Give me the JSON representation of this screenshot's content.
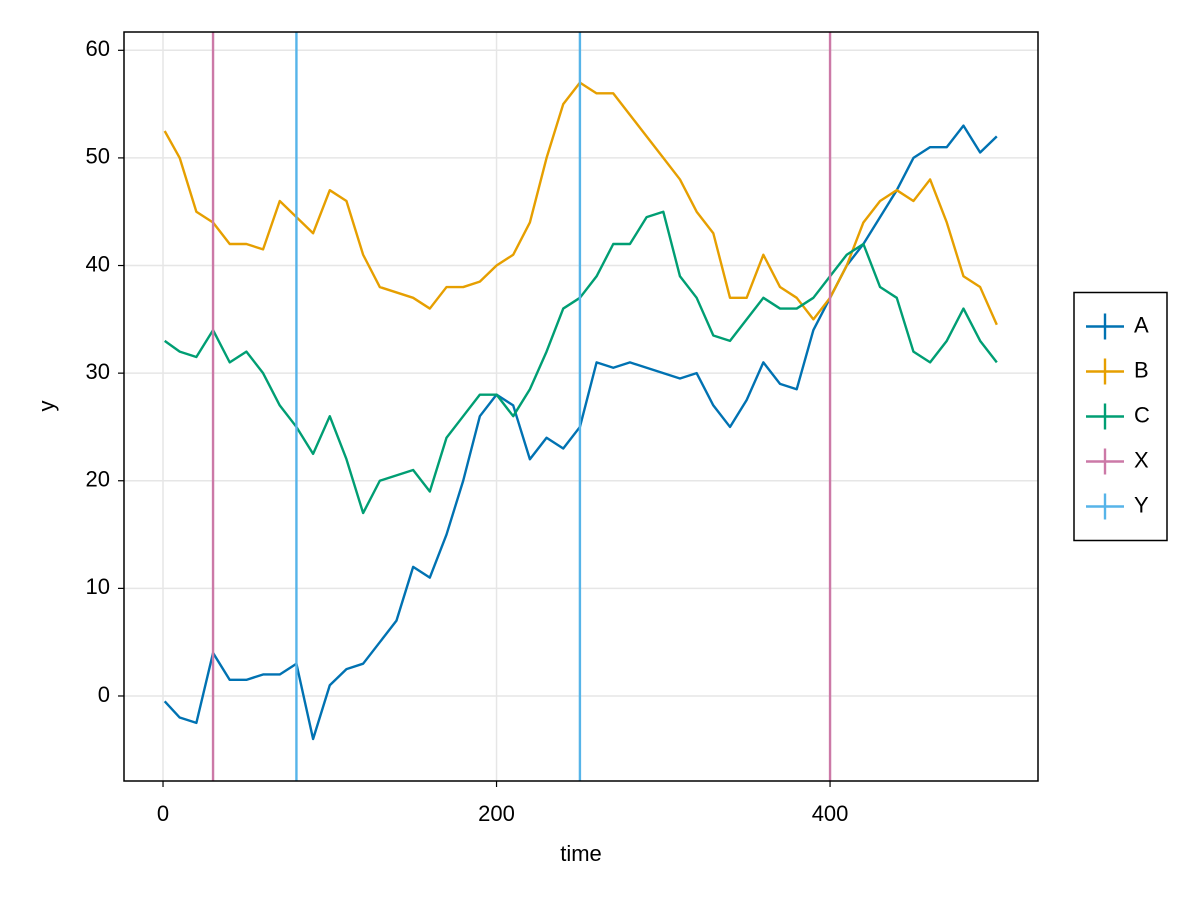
{
  "chart_data": {
    "type": "line",
    "xlabel": "time",
    "ylabel": "y",
    "x": [
      1,
      10,
      20,
      30,
      40,
      50,
      60,
      70,
      80,
      90,
      100,
      110,
      120,
      130,
      140,
      150,
      160,
      170,
      180,
      190,
      200,
      210,
      220,
      230,
      240,
      250,
      260,
      270,
      280,
      290,
      300,
      310,
      320,
      330,
      340,
      350,
      360,
      370,
      380,
      390,
      400,
      410,
      420,
      430,
      440,
      450,
      460,
      470,
      480,
      490,
      500
    ],
    "series": [
      {
        "name": "A",
        "color": "#0072b2",
        "values": [
          -0.5,
          -2,
          -2.5,
          4,
          1.5,
          1.5,
          2,
          2,
          3,
          -4,
          1,
          2.5,
          3,
          5,
          7,
          12,
          11,
          15,
          20,
          26,
          28,
          27,
          22,
          24,
          23,
          25,
          31,
          30.5,
          31,
          30.5,
          30,
          29.5,
          30,
          27,
          25,
          27.5,
          31,
          29,
          28.5,
          34,
          37,
          40,
          42,
          44.5,
          47,
          50,
          51,
          51,
          53,
          50.5,
          52
        ]
      },
      {
        "name": "B",
        "color": "#e69f00",
        "values": [
          52.5,
          50,
          45,
          44,
          42,
          42,
          41.5,
          46,
          44.5,
          43,
          47,
          46,
          41,
          38,
          37.5,
          37,
          36,
          38,
          38,
          38.5,
          40,
          41,
          44,
          50,
          55,
          57,
          56,
          56,
          54,
          52,
          50,
          48,
          45,
          43,
          37,
          37,
          41,
          38,
          37,
          35,
          37,
          40,
          44,
          46,
          47,
          46,
          48,
          44,
          39,
          38,
          34.5
        ]
      },
      {
        "name": "C",
        "color": "#009e73",
        "values": [
          33,
          32,
          31.5,
          34,
          31,
          32,
          30,
          27,
          25,
          22.5,
          26,
          22,
          17,
          20,
          20.5,
          21,
          19,
          24,
          26,
          28,
          28,
          26,
          28.5,
          32,
          36,
          37,
          39,
          42,
          42,
          44.5,
          45,
          39,
          37,
          33.5,
          33,
          35,
          37,
          36,
          36,
          37,
          39,
          41,
          42,
          38,
          37,
          32,
          31,
          33,
          36,
          33,
          31
        ]
      }
    ],
    "vlines": [
      {
        "name": "X",
        "color": "#cc79a7",
        "values": [
          30,
          400
        ]
      },
      {
        "name": "Y",
        "color": "#56b4e9",
        "values": [
          80,
          250
        ]
      }
    ],
    "xlim": [
      -23.4,
      524.7
    ],
    "ylim": [
      -7.9,
      61.7
    ],
    "xticks": [
      0,
      200,
      400
    ],
    "yticks": [
      0,
      10,
      20,
      30,
      40,
      50,
      60
    ],
    "grid": true,
    "legend": "right"
  }
}
